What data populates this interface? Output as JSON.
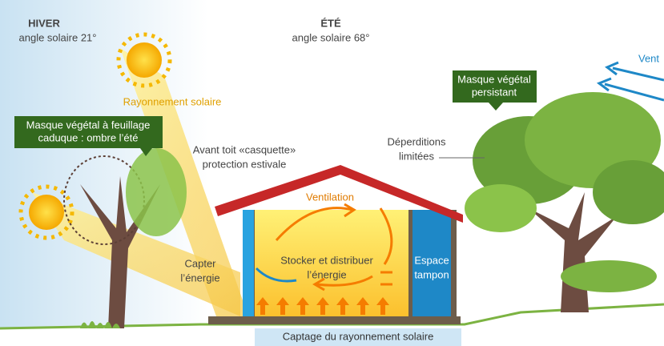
{
  "winter": {
    "title": "HIVER",
    "angle": "angle solaire 21°"
  },
  "summer": {
    "title": "ÉTÉ",
    "angle": "angle solaire 68°"
  },
  "wind": "Vent",
  "labels": {
    "evergreen": [
      "Masque végétal",
      "persistant"
    ],
    "deciduous": [
      "Masque végétal à feuillage",
      "caduque : ombre l’été"
    ],
    "radiation": "Rayonnement solaire",
    "overhang": [
      "Avant toit «casquette»",
      "protection estivale"
    ],
    "losses": [
      "Déperditions",
      "limitées"
    ],
    "ventilation": "Ventilation",
    "capture": [
      "Capter",
      "l’énergie"
    ],
    "store": [
      "Stocker et distribuer",
      "l’énergie"
    ],
    "buffer": [
      "Espace",
      "tampon"
    ],
    "bottom": "Captage du rayonnement solaire"
  }
}
